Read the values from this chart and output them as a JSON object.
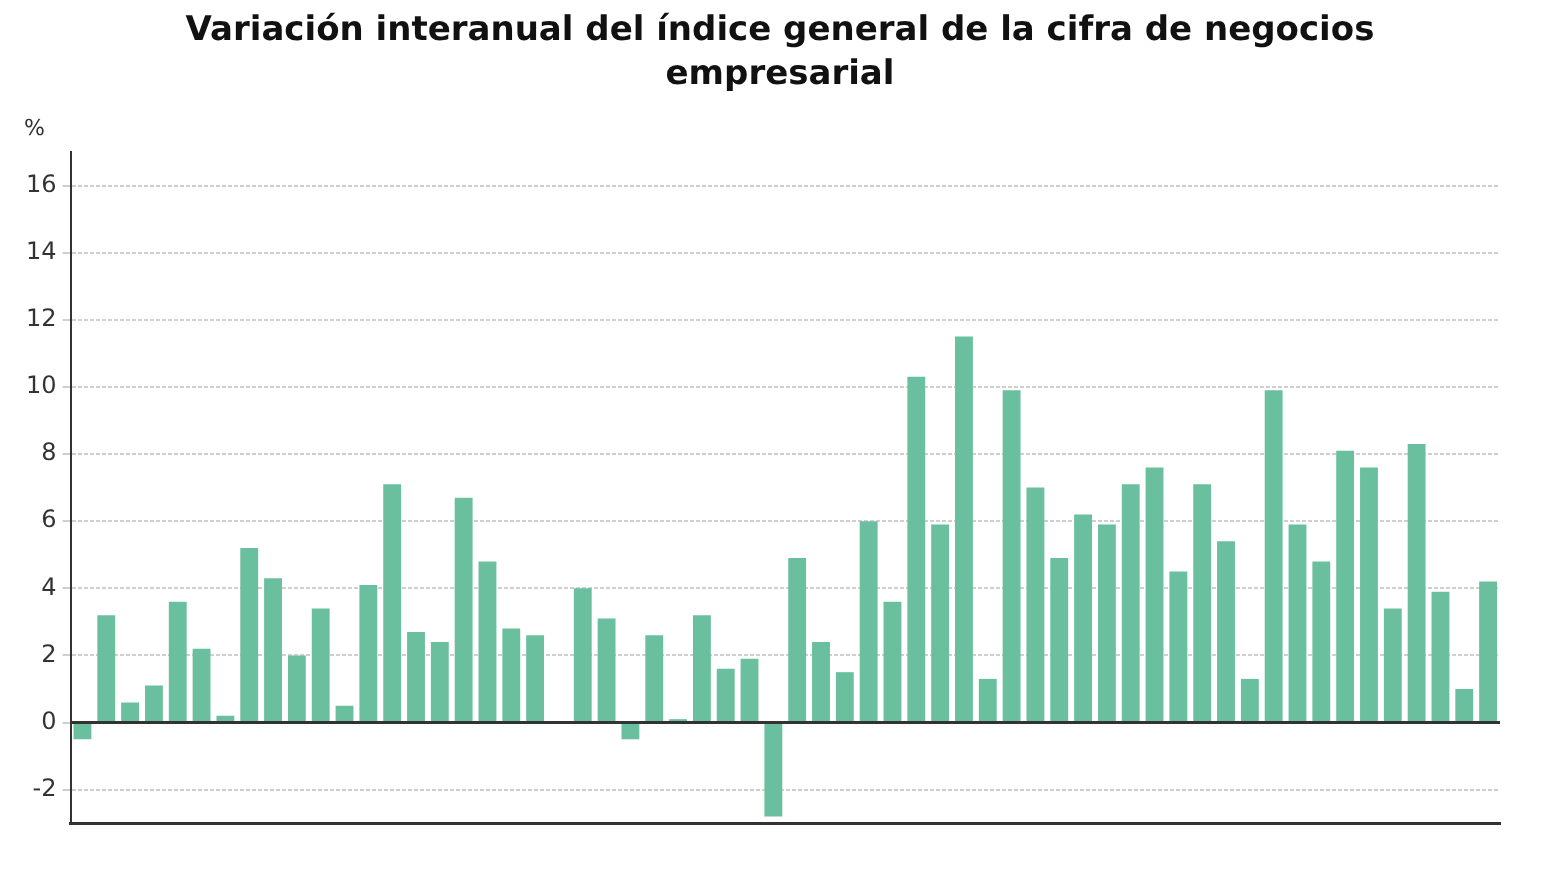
{
  "chart_data": {
    "type": "bar",
    "title": "Variación interanual del índice general de la cifra de negocios empresarial",
    "ylabel": "%",
    "categories": [
      null,
      null,
      null,
      null,
      null,
      null,
      null,
      null,
      null,
      null,
      null,
      null,
      null,
      null,
      null,
      null,
      null,
      null,
      null,
      null,
      null,
      null,
      null,
      null,
      null,
      null,
      null,
      null,
      null,
      null,
      null,
      null,
      null,
      null,
      null,
      null,
      null,
      null,
      null,
      null,
      null,
      null,
      null,
      null,
      null,
      null,
      null,
      null,
      null,
      null,
      null,
      null,
      null,
      null,
      null,
      null,
      null,
      null,
      null,
      null
    ],
    "values": [
      -0.5,
      3.2,
      0.6,
      1.1,
      3.6,
      2.2,
      0.2,
      5.2,
      4.3,
      2.0,
      3.4,
      0.5,
      4.1,
      7.1,
      2.7,
      2.4,
      6.7,
      4.8,
      2.8,
      2.6,
      0,
      4.0,
      3.1,
      -0.5,
      2.6,
      0.1,
      3.2,
      1.6,
      1.9,
      -2.8,
      4.9,
      2.4,
      1.5,
      6.0,
      3.6,
      10.3,
      5.9,
      11.5,
      1.3,
      9.9,
      7.0,
      4.9,
      6.2,
      5.9,
      7.1,
      7.6,
      4.5,
      7.1,
      5.4,
      1.3,
      9.9,
      5.9,
      4.8,
      8.1,
      7.6,
      3.4,
      8.3,
      3.9,
      1.0,
      4.2
    ],
    "color": "#6abf9e",
    "ylim": [
      -3,
      17
    ],
    "yticks": [
      -2,
      0,
      2,
      4,
      6,
      8,
      10,
      12,
      14,
      16
    ],
    "grid": "y",
    "legend": false,
    "ref_lines": [
      {
        "axis": "y",
        "value": 0,
        "color": "#333333",
        "line_style": "solid"
      }
    ]
  }
}
